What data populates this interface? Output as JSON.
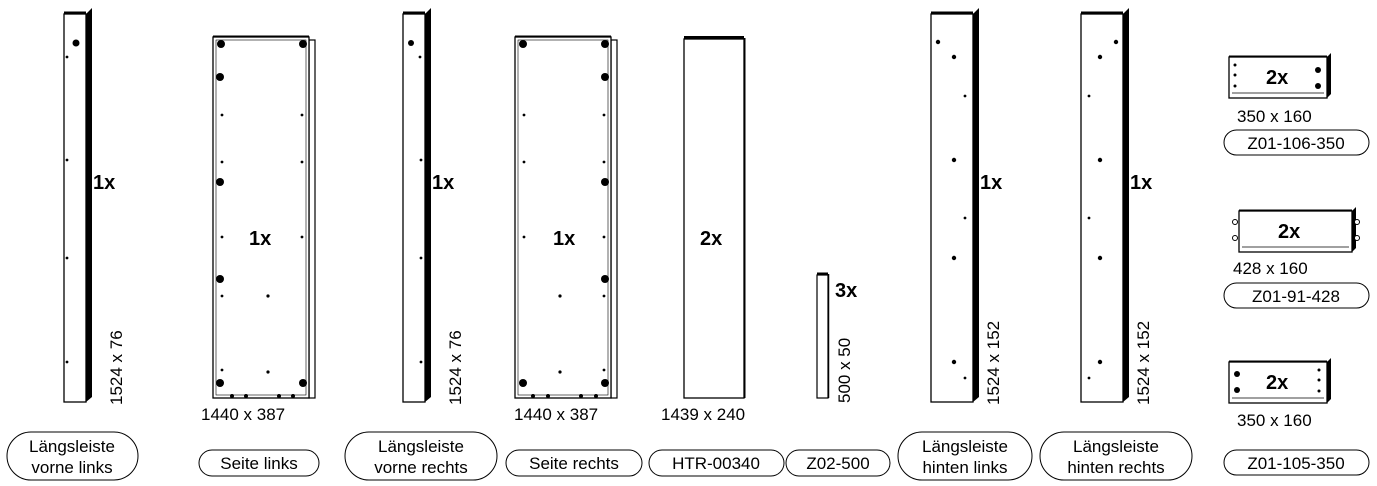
{
  "parts": [
    {
      "id": "laengsleiste-vorne-links",
      "quantity": "1x",
      "dimensions": "1524 x 76",
      "label_lines": [
        "Längsleiste",
        "vorne links"
      ]
    },
    {
      "id": "seite-links",
      "quantity": "1x",
      "dimensions": "1440 x 387",
      "label_lines": [
        "Seite links"
      ]
    },
    {
      "id": "laengsleiste-vorne-rechts",
      "quantity": "1x",
      "dimensions": "1524 x 76",
      "label_lines": [
        "Längsleiste",
        "vorne rechts"
      ]
    },
    {
      "id": "seite-rechts",
      "quantity": "1x",
      "dimensions": "1440 x 387",
      "label_lines": [
        "Seite rechts"
      ]
    },
    {
      "id": "htr-00340",
      "quantity": "2x",
      "dimensions": "1439 x 240",
      "label_lines": [
        "HTR-00340"
      ]
    },
    {
      "id": "z02-500",
      "quantity": "3x",
      "dimensions": "500 x 50",
      "label_lines": [
        "Z02-500"
      ]
    },
    {
      "id": "laengsleiste-hinten-links",
      "quantity": "1x",
      "dimensions": "1524 x 152",
      "label_lines": [
        "Längsleiste",
        "hinten links"
      ]
    },
    {
      "id": "laengsleiste-hinten-rechts",
      "quantity": "1x",
      "dimensions": "1524 x 152",
      "label_lines": [
        "Längsleiste",
        "hinten rechts"
      ]
    },
    {
      "id": "z01-106-350",
      "quantity": "2x",
      "dimensions": "350 x 160",
      "label_lines": [
        "Z01-106-350"
      ]
    },
    {
      "id": "z01-91-428",
      "quantity": "2x",
      "dimensions": "428 x 160",
      "label_lines": [
        "Z01-91-428"
      ]
    },
    {
      "id": "z01-105-350",
      "quantity": "2x",
      "dimensions": "350 x 160",
      "label_lines": [
        "Z01-105-350"
      ]
    }
  ]
}
